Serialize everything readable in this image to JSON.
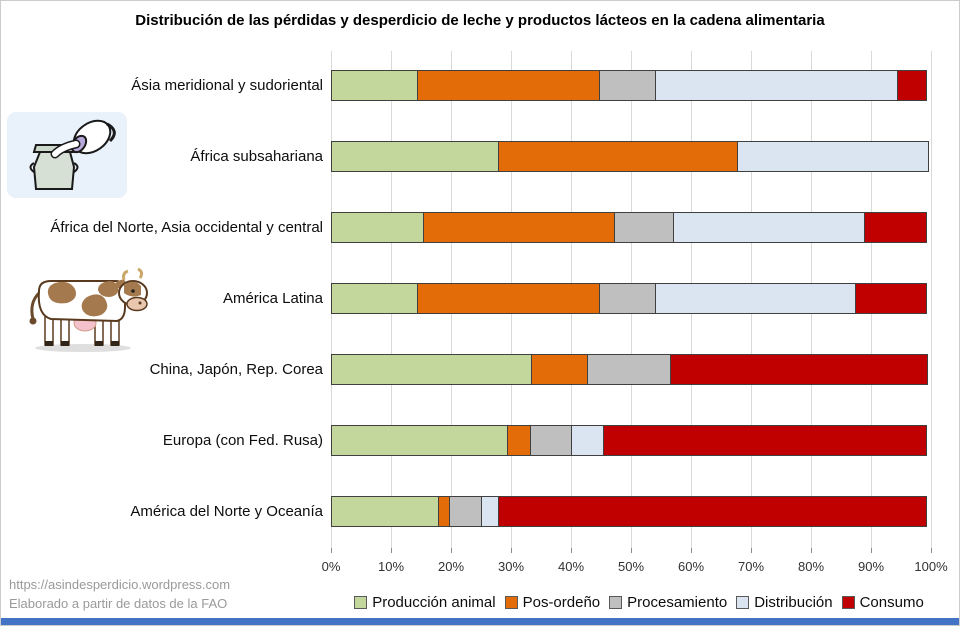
{
  "page": {
    "footer": {
      "line1": "https://asindesperdicio.wordpress.com",
      "line2": "Elaborado a partir de datos de la FAO"
    },
    "accent_strip_color": "#4472c4",
    "icons": [
      "milk-jug-pouring-icon",
      "cow-icon"
    ]
  },
  "chart_data": {
    "type": "bar",
    "orientation": "horizontal",
    "stacked": true,
    "title": "Distribución de las pérdidas y desperdicio de leche y productos lácteos en la cadena alimentaria",
    "categories": [
      "Ásia meridional y sudoriental",
      "África subsahariana",
      "África del Norte, Asia occidental y central",
      "América Latina",
      "China, Japón, Rep. Corea",
      "Europa (con Fed. Rusa)",
      "América del Norte y Oceanía"
    ],
    "series": [
      {
        "name": "Producción animal",
        "color": "#c3d69b",
        "values": [
          14.5,
          28,
          15.5,
          14.5,
          33.5,
          29.5,
          18
        ]
      },
      {
        "name": "Pos-ordeño",
        "color": "#e36c09",
        "values": [
          30.5,
          40,
          32,
          30.5,
          9.5,
          4,
          2
        ]
      },
      {
        "name": "Procesamiento",
        "color": "#bfbfbf",
        "values": [
          9.5,
          0,
          10,
          9.5,
          14,
          7,
          5.5
        ]
      },
      {
        "name": "Distribución",
        "color": "#dbe5f1",
        "values": [
          40.5,
          32,
          32,
          33.5,
          0,
          5.5,
          3
        ]
      },
      {
        "name": "Consumo",
        "color": "#c00000",
        "values": [
          5,
          0,
          10.5,
          12,
          43,
          54,
          71.5
        ]
      }
    ],
    "x_ticks": [
      "0%",
      "10%",
      "20%",
      "30%",
      "40%",
      "50%",
      "60%",
      "70%",
      "80%",
      "90%",
      "100%"
    ],
    "xlim": [
      0,
      100
    ],
    "units": "percent share of total losses",
    "grid": "vertical",
    "legend_position": "bottom"
  }
}
